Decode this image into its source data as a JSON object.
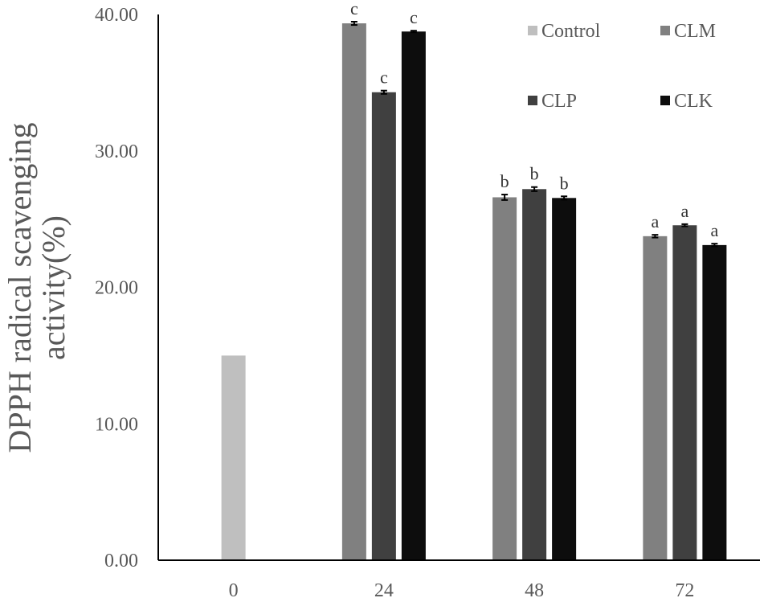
{
  "chart_data": {
    "type": "bar",
    "categories": [
      "0",
      "24",
      "48",
      "72"
    ],
    "series": [
      {
        "name": "Control",
        "color": "#BFBFBF",
        "values": [
          15.0,
          null,
          null,
          null
        ],
        "errors": [
          0,
          null,
          null,
          null
        ],
        "labels": [
          "",
          "",
          "",
          ""
        ]
      },
      {
        "name": "CLM",
        "color": "#808080",
        "values": [
          null,
          39.35,
          26.6,
          23.75
        ],
        "errors": [
          null,
          0.12,
          0.2,
          0.1
        ],
        "labels": [
          "",
          "c",
          "b",
          "a"
        ]
      },
      {
        "name": "CLP",
        "color": "#404040",
        "values": [
          null,
          34.3,
          27.2,
          24.55
        ],
        "errors": [
          null,
          0.12,
          0.15,
          0.08
        ],
        "labels": [
          "",
          "c",
          "b",
          "a"
        ]
      },
      {
        "name": "CLK",
        "color": "#0D0D0D",
        "values": [
          null,
          38.75,
          26.55,
          23.1
        ],
        "errors": [
          null,
          0.06,
          0.12,
          0.1
        ],
        "labels": [
          "",
          "c",
          "b",
          "a"
        ]
      }
    ],
    "title": "",
    "xlabel": "",
    "ylabel_lines": [
      "DPPH radical scavenging",
      "activity(%)"
    ],
    "ylim": [
      0,
      40
    ],
    "y_ticks": [
      0,
      10,
      20,
      30,
      40
    ],
    "y_tick_labels": [
      "0.00",
      "10.00",
      "20.00",
      "30.00",
      "40.00"
    ],
    "grid": false,
    "legend": {
      "placement": "top-right",
      "entries": [
        "Control",
        "CLM",
        "CLP",
        "CLK"
      ]
    }
  }
}
